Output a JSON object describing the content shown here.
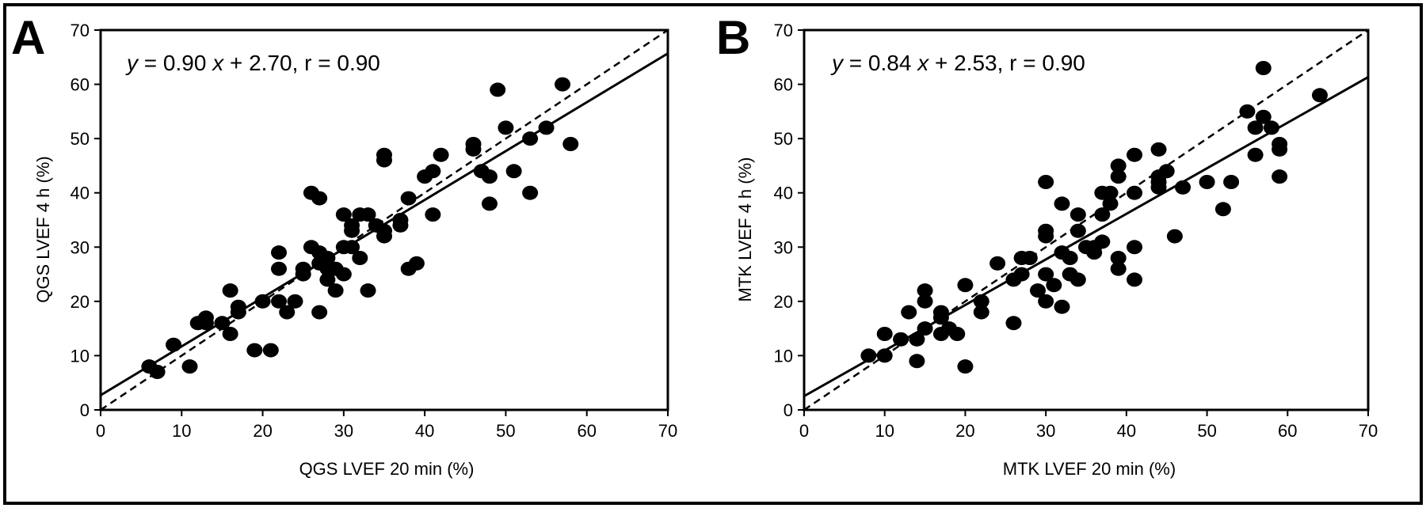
{
  "chart_data": [
    {
      "type": "scatter",
      "panel_label": "A",
      "equation_y": "y",
      "equation_mid": " = 0.90 ",
      "equation_x": "x",
      "equation_tail": " + 2.70,  r = 0.90",
      "xlabel": "QGS LVEF 20 min (%)",
      "ylabel": "QGS LVEF 4 h (%)",
      "xlim": [
        0,
        70
      ],
      "ylim": [
        0,
        70
      ],
      "xticks": [
        "0",
        "10",
        "20",
        "30",
        "40",
        "50",
        "60",
        "70"
      ],
      "yticks": [
        "0",
        "10",
        "20",
        "30",
        "40",
        "50",
        "60",
        "70"
      ],
      "regression": {
        "slope": 0.9,
        "intercept": 2.7
      },
      "identity_line": true,
      "points": [
        [
          6,
          8
        ],
        [
          7,
          7
        ],
        [
          9,
          12
        ],
        [
          11,
          8
        ],
        [
          12,
          16
        ],
        [
          13,
          16
        ],
        [
          13,
          17
        ],
        [
          15,
          16
        ],
        [
          16,
          14
        ],
        [
          16,
          22
        ],
        [
          17,
          18
        ],
        [
          17,
          19
        ],
        [
          19,
          11
        ],
        [
          20,
          20
        ],
        [
          21,
          11
        ],
        [
          22,
          20
        ],
        [
          22,
          26
        ],
        [
          22,
          29
        ],
        [
          23,
          18
        ],
        [
          24,
          20
        ],
        [
          25,
          25
        ],
        [
          25,
          26
        ],
        [
          26,
          30
        ],
        [
          26,
          40
        ],
        [
          27,
          18
        ],
        [
          27,
          27
        ],
        [
          27,
          29
        ],
        [
          27,
          39
        ],
        [
          28,
          24
        ],
        [
          28,
          26
        ],
        [
          28,
          28
        ],
        [
          29,
          22
        ],
        [
          29,
          26
        ],
        [
          30,
          25
        ],
        [
          30,
          30
        ],
        [
          30,
          36
        ],
        [
          31,
          30
        ],
        [
          31,
          33
        ],
        [
          31,
          34
        ],
        [
          32,
          28
        ],
        [
          32,
          36
        ],
        [
          33,
          22
        ],
        [
          33,
          36
        ],
        [
          34,
          34
        ],
        [
          35,
          32
        ],
        [
          35,
          33
        ],
        [
          35,
          46
        ],
        [
          35,
          47
        ],
        [
          37,
          34
        ],
        [
          37,
          35
        ],
        [
          38,
          26
        ],
        [
          38,
          39
        ],
        [
          39,
          27
        ],
        [
          40,
          43
        ],
        [
          41,
          36
        ],
        [
          41,
          44
        ],
        [
          42,
          47
        ],
        [
          46,
          48
        ],
        [
          46,
          49
        ],
        [
          47,
          44
        ],
        [
          48,
          38
        ],
        [
          48,
          43
        ],
        [
          49,
          59
        ],
        [
          50,
          52
        ],
        [
          51,
          44
        ],
        [
          53,
          40
        ],
        [
          53,
          50
        ],
        [
          55,
          52
        ],
        [
          57,
          60
        ],
        [
          58,
          49
        ]
      ]
    },
    {
      "type": "scatter",
      "panel_label": "B",
      "equation_y": "y",
      "equation_mid": " = 0.84 ",
      "equation_x": "x",
      "equation_tail": " + 2.53,  r = 0.90",
      "xlabel": "MTK LVEF 20 min (%)",
      "ylabel": "MTK LVEF 4 h (%)",
      "xlim": [
        0,
        70
      ],
      "ylim": [
        0,
        70
      ],
      "xticks": [
        "0",
        "10",
        "20",
        "30",
        "40",
        "50",
        "60",
        "70"
      ],
      "yticks": [
        "0",
        "10",
        "20",
        "30",
        "40",
        "50",
        "60",
        "70"
      ],
      "regression": {
        "slope": 0.84,
        "intercept": 2.53
      },
      "identity_line": true,
      "points": [
        [
          8,
          10
        ],
        [
          10,
          10
        ],
        [
          10,
          14
        ],
        [
          12,
          13
        ],
        [
          13,
          18
        ],
        [
          14,
          9
        ],
        [
          14,
          13
        ],
        [
          15,
          15
        ],
        [
          15,
          20
        ],
        [
          15,
          22
        ],
        [
          17,
          14
        ],
        [
          17,
          17
        ],
        [
          17,
          18
        ],
        [
          18,
          15
        ],
        [
          19,
          14
        ],
        [
          20,
          8
        ],
        [
          20,
          23
        ],
        [
          22,
          18
        ],
        [
          22,
          20
        ],
        [
          24,
          27
        ],
        [
          26,
          16
        ],
        [
          26,
          24
        ],
        [
          27,
          25
        ],
        [
          27,
          28
        ],
        [
          28,
          28
        ],
        [
          29,
          22
        ],
        [
          30,
          20
        ],
        [
          30,
          25
        ],
        [
          30,
          32
        ],
        [
          30,
          33
        ],
        [
          30,
          42
        ],
        [
          31,
          23
        ],
        [
          32,
          19
        ],
        [
          32,
          29
        ],
        [
          32,
          38
        ],
        [
          33,
          25
        ],
        [
          33,
          28
        ],
        [
          34,
          24
        ],
        [
          34,
          33
        ],
        [
          34,
          36
        ],
        [
          35,
          30
        ],
        [
          36,
          29
        ],
        [
          36,
          30
        ],
        [
          37,
          31
        ],
        [
          37,
          36
        ],
        [
          37,
          40
        ],
        [
          38,
          38
        ],
        [
          38,
          40
        ],
        [
          39,
          26
        ],
        [
          39,
          28
        ],
        [
          39,
          43
        ],
        [
          39,
          45
        ],
        [
          41,
          24
        ],
        [
          41,
          30
        ],
        [
          41,
          40
        ],
        [
          41,
          47
        ],
        [
          44,
          41
        ],
        [
          44,
          42
        ],
        [
          44,
          43
        ],
        [
          44,
          48
        ],
        [
          45,
          44
        ],
        [
          46,
          32
        ],
        [
          47,
          41
        ],
        [
          50,
          42
        ],
        [
          52,
          37
        ],
        [
          53,
          42
        ],
        [
          55,
          55
        ],
        [
          56,
          47
        ],
        [
          56,
          52
        ],
        [
          57,
          54
        ],
        [
          57,
          63
        ],
        [
          58,
          52
        ],
        [
          59,
          43
        ],
        [
          59,
          48
        ],
        [
          59,
          49
        ],
        [
          64,
          58
        ]
      ]
    }
  ]
}
